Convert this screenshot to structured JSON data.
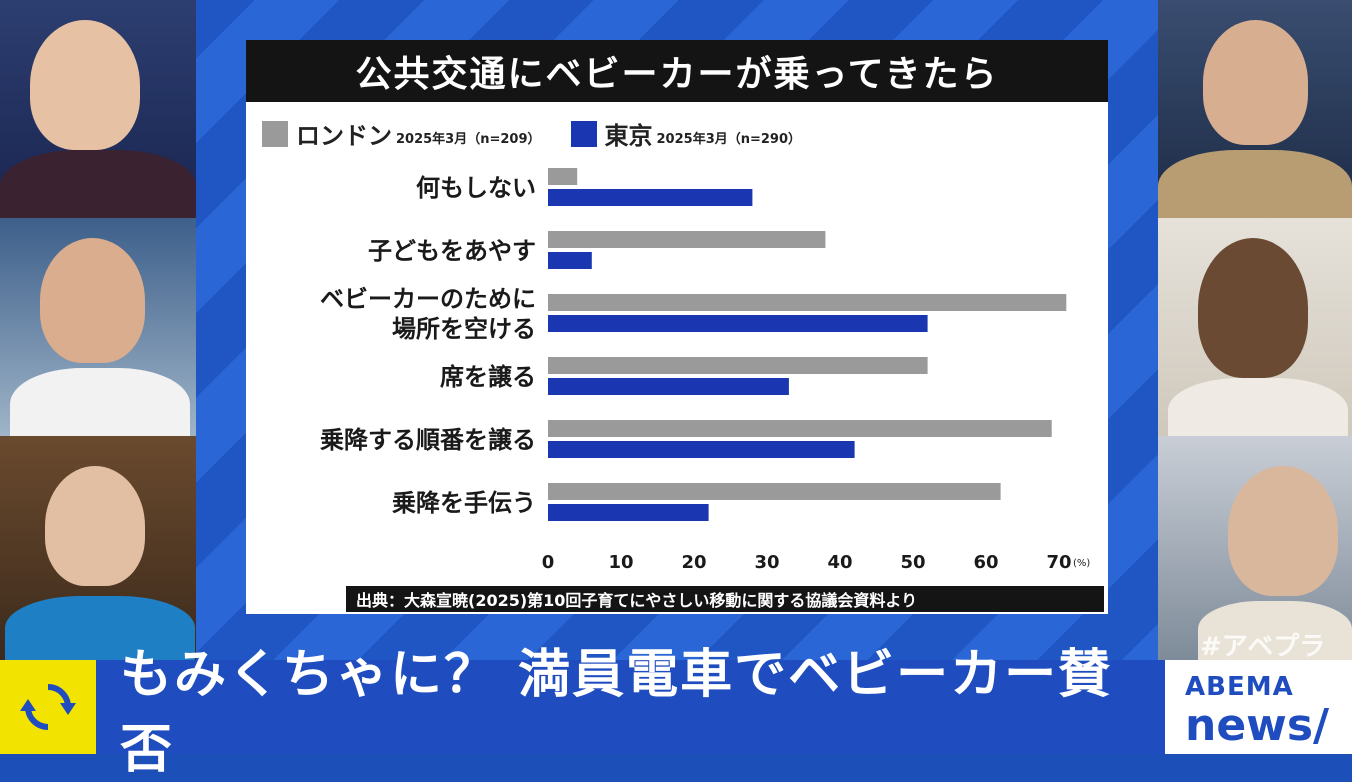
{
  "chart_data": {
    "type": "bar",
    "orientation": "horizontal",
    "title": "公共交通にベビーカーが乗ってきたら",
    "categories": [
      "何もしない",
      "子どもをあやす",
      "ベビーカーのために場所を空ける",
      "席を譲る",
      "乗降する順番を譲る",
      "乗降を手伝う"
    ],
    "category_lines": [
      [
        "何もしない"
      ],
      [
        "子どもをあやす"
      ],
      [
        "ベビーカーのために",
        "場所を空ける"
      ],
      [
        "席を譲る"
      ],
      [
        "乗降する順番を譲る"
      ],
      [
        "乗降を手伝う"
      ]
    ],
    "series": [
      {
        "name": "ロンドン",
        "note": "2025年3月（n=209）",
        "color": "#9a9a9a",
        "values": [
          4,
          38,
          71,
          52,
          69,
          62
        ]
      },
      {
        "name": "東京",
        "note": "2025年3月（n=290）",
        "color": "#1a36b0",
        "values": [
          28,
          6,
          52,
          33,
          42,
          22
        ]
      }
    ],
    "xlim": [
      0,
      70
    ],
    "xticks": [
      "0",
      "10",
      "20",
      "30",
      "40",
      "50",
      "60",
      "70"
    ],
    "xunit": "(%)",
    "legend_position": "top-left",
    "source": "出典：大森宣暁(2025)第10回子育てにやさしい移動に関する協議会資料より"
  },
  "caption": "もみくちゃに？ 満員電車でベビーカー賛否",
  "hashtag": "#アベプラ",
  "logo": {
    "line1": "ABEMA",
    "line2": "news/"
  },
  "colors": {
    "frame_blue": "#1f4dbf",
    "badge_yellow": "#f2e400"
  },
  "icons": [
    "refresh-icon"
  ]
}
